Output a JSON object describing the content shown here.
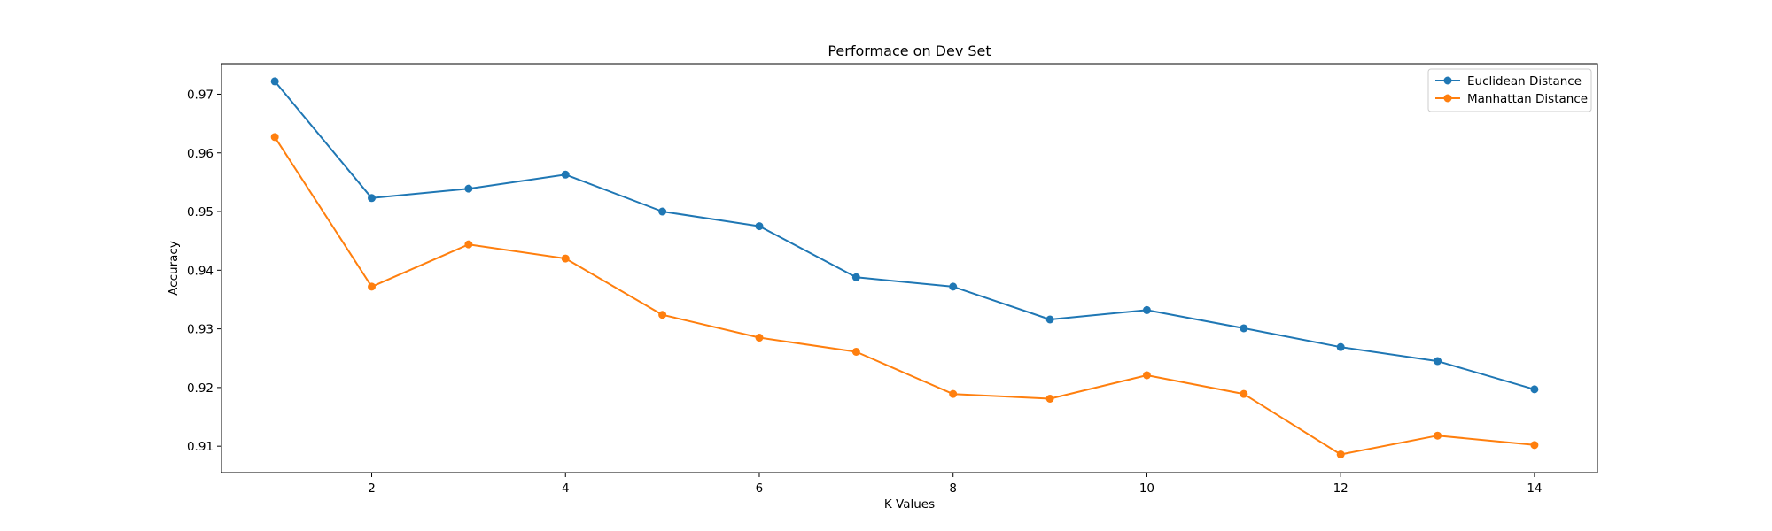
{
  "chart_data": {
    "type": "line",
    "title": "Performace on Dev Set",
    "xlabel": "K Values",
    "ylabel": "Accuracy",
    "xlim": [
      0.45,
      14.65
    ],
    "ylim": [
      0.9055,
      0.9752
    ],
    "xticks": [
      2,
      4,
      6,
      8,
      10,
      12,
      14
    ],
    "yticks": [
      0.91,
      0.92,
      0.93,
      0.94,
      0.95,
      0.96,
      0.97
    ],
    "grid": false,
    "legend_position": "top-right",
    "x": [
      1,
      2,
      3,
      4,
      5,
      6,
      7,
      8,
      9,
      10,
      11,
      12,
      13,
      14
    ],
    "series": [
      {
        "name": "Euclidean Distance",
        "color": "#1f77b4",
        "values": [
          0.9722,
          0.9523,
          0.9539,
          0.9563,
          0.95,
          0.9475,
          0.9388,
          0.9372,
          0.9316,
          0.9332,
          0.9301,
          0.9269,
          0.9245,
          0.9197
        ]
      },
      {
        "name": "Manhattan Distance",
        "color": "#ff7f0e",
        "values": [
          0.9627,
          0.9372,
          0.9444,
          0.942,
          0.9324,
          0.9285,
          0.9261,
          0.9189,
          0.9181,
          0.9221,
          0.9189,
          0.9086,
          0.9118,
          0.9102
        ]
      }
    ]
  }
}
